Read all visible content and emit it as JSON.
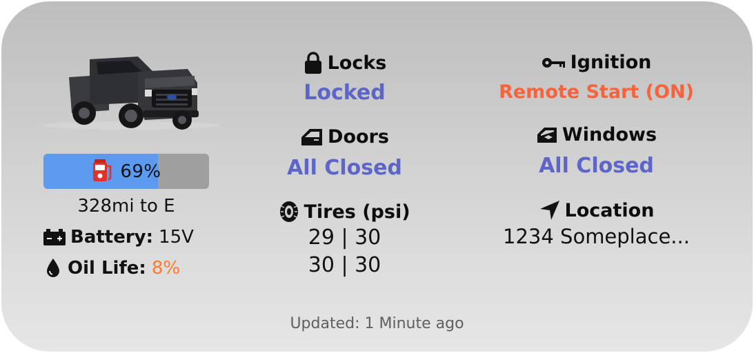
{
  "fuel": {
    "percent_label": "69%",
    "fill_fraction": 0.69,
    "range_text": "328mi to E",
    "icon": "fuel-pump-icon"
  },
  "battery": {
    "label": "Battery:",
    "value": "15V",
    "icon": "battery-icon"
  },
  "oil": {
    "label": "Oil Life:",
    "value": "8%",
    "value_color": "#ff7a2e",
    "icon": "oil-drop-icon"
  },
  "locks": {
    "title": "Locks",
    "value": "Locked",
    "icon": "lock-icon"
  },
  "doors": {
    "title": "Doors",
    "value": "All Closed",
    "icon": "door-icon"
  },
  "tires": {
    "title": "Tires (psi)",
    "front": "29 | 30",
    "rear": "30 | 30",
    "icon": "tire-icon"
  },
  "ignition": {
    "title": "Ignition",
    "value": "Remote Start (ON)",
    "value_color": "#f5643c",
    "icon": "key-icon"
  },
  "windows": {
    "title": "Windows",
    "value": "All Closed",
    "icon": "window-icon"
  },
  "location": {
    "title": "Location",
    "value": "1234 Someplace...",
    "icon": "location-arrow-icon"
  },
  "footer": {
    "updated": "Updated: 1 Minute ago"
  },
  "colors": {
    "accent_value": "#5d66c8",
    "fuel_fill": "#5b9aef"
  }
}
